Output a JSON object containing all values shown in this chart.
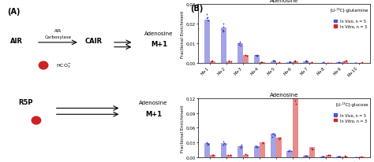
{
  "top_chart": {
    "title": "Adenosine",
    "ylabel": "Fractional Enrichment",
    "annotation": "[U-¹³C]-glutamine",
    "categories": [
      "M+1",
      "M+2",
      "M+3",
      "M+4",
      "M+5",
      "M+6",
      "M+7",
      "M+8",
      "M+9",
      "M+10"
    ],
    "in_vivo": [
      0.022,
      0.018,
      0.01,
      0.004,
      0.001,
      0.0005,
      0.001,
      0.0002,
      0.0003,
      0.0001
    ],
    "in_vitro": [
      0.001,
      0.001,
      0.004,
      0.0005,
      0.0002,
      0.001,
      0.0002,
      0.0,
      0.001,
      0.0001
    ],
    "ylim": [
      0,
      0.03
    ],
    "yticks": [
      0.0,
      0.01,
      0.02,
      0.03
    ],
    "legend_vivo": "In Vivo, n = 5",
    "legend_vitro": "In Vitro, n = 3"
  },
  "bottom_chart": {
    "title": "Adenosine",
    "ylabel": "Fractional Enrichment",
    "annotation": "[U-¹³C]-glucose",
    "categories": [
      "M+1",
      "M+2",
      "M+3",
      "M+4",
      "M+5",
      "M+6",
      "M+7",
      "M+8",
      "M+9",
      "M+10"
    ],
    "in_vivo": [
      0.028,
      0.028,
      0.022,
      0.022,
      0.048,
      0.012,
      0.003,
      0.001,
      0.0005,
      0.0002
    ],
    "in_vitro": [
      0.005,
      0.005,
      0.005,
      0.03,
      0.04,
      0.12,
      0.02,
      0.005,
      0.002,
      0.0005
    ],
    "ylim": [
      0,
      0.12
    ],
    "yticks": [
      0.0,
      0.03,
      0.06,
      0.09,
      0.12
    ],
    "legend_vivo": "In Vivo, n = 5",
    "legend_vitro": "In Vitro, n = 3"
  },
  "color_vivo": "#3333cc",
  "color_vitro": "#cc0000",
  "label_A": "(A)",
  "label_B": "(B)"
}
